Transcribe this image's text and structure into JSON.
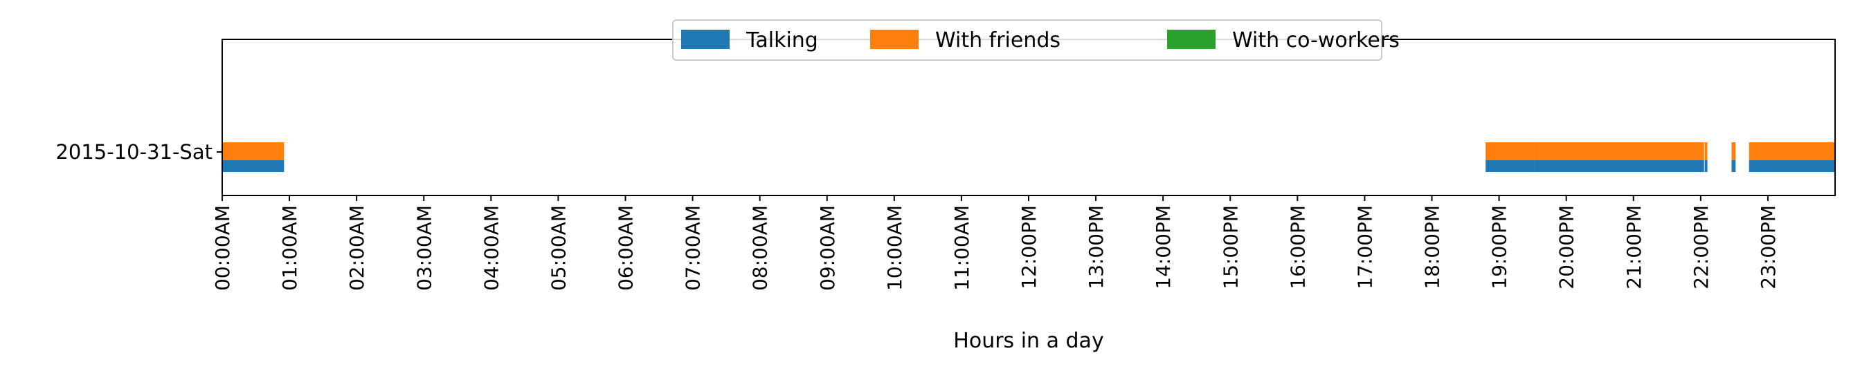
{
  "chart_data": {
    "type": "bar",
    "orientation": "horizontal-timeline",
    "xlabel": "Hours in a day",
    "ylabel": "",
    "title": "",
    "xlim": [
      0,
      24
    ],
    "grid": false,
    "legend_placement": "top-center",
    "categories": [
      "2015-10-31-Sat"
    ],
    "x_tick_values": [
      0,
      1,
      2,
      3,
      4,
      5,
      6,
      7,
      8,
      9,
      10,
      11,
      12,
      13,
      14,
      15,
      16,
      17,
      18,
      19,
      20,
      21,
      22,
      23
    ],
    "x_tick_labels": [
      "00:00AM",
      "01:00AM",
      "02:00AM",
      "03:00AM",
      "04:00AM",
      "05:00AM",
      "06:00AM",
      "07:00AM",
      "08:00AM",
      "09:00AM",
      "10:00AM",
      "11:00AM",
      "12:00PM",
      "13:00PM",
      "14:00PM",
      "15:00PM",
      "16:00PM",
      "17:00PM",
      "18:00PM",
      "19:00PM",
      "20:00PM",
      "21:00PM",
      "22:00PM",
      "23:00PM"
    ],
    "series": [
      {
        "name": "Talking",
        "color": "#1f77b4",
        "row": "lower",
        "intervals": [
          [
            0.0,
            0.92
          ],
          [
            18.8,
            19.52
          ],
          [
            19.52,
            22.05
          ],
          [
            22.06,
            22.1
          ],
          [
            22.46,
            22.52
          ],
          [
            22.72,
            24.0
          ]
        ]
      },
      {
        "name": "With friends",
        "color": "#ff7f0e",
        "row": "upper",
        "intervals": [
          [
            0.0,
            0.92
          ],
          [
            18.8,
            19.52
          ],
          [
            19.52,
            22.05
          ],
          [
            22.06,
            22.1
          ],
          [
            22.46,
            22.52
          ],
          [
            22.72,
            24.0
          ]
        ]
      },
      {
        "name": "With co-workers",
        "color": "#2ca02c",
        "row": "upper",
        "intervals": []
      }
    ]
  }
}
